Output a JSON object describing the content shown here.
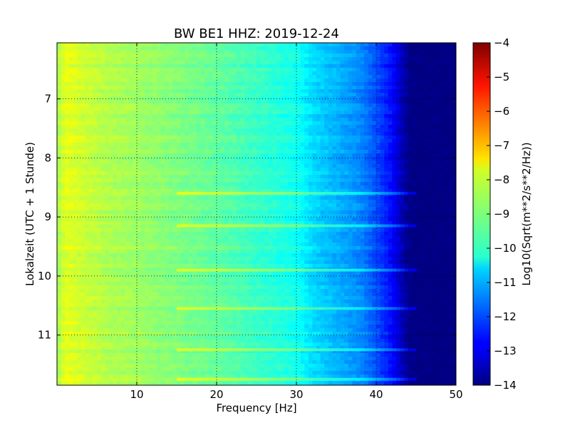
{
  "chart_data": {
    "type": "heatmap",
    "title": "BW BE1 HHZ: 2019-12-24",
    "xlabel": "Frequency [Hz]",
    "ylabel": "Lokalzeit (UTC + 1 Stunde)",
    "xlim": [
      0,
      50
    ],
    "ylim": [
      6.05,
      11.85
    ],
    "y_inverted": true,
    "x_ticks": [
      10,
      20,
      30,
      40,
      50
    ],
    "y_ticks": [
      7,
      8,
      9,
      10,
      11
    ],
    "grid": true,
    "colorbar": {
      "label": "Log10(Sqrt(m**2/s**2/Hz))",
      "range": [
        -14,
        -4
      ],
      "ticks": [
        -4,
        -5,
        -6,
        -7,
        -8,
        -9,
        -10,
        -11,
        -12,
        -13,
        -14
      ],
      "colormap": "jet"
    },
    "spectrum_profile": {
      "frequency_hz": [
        0,
        1,
        3,
        6,
        10,
        15,
        20,
        25,
        30,
        32,
        35,
        38,
        40,
        42,
        43,
        44,
        45,
        50
      ],
      "log10_amplitude": [
        -8.7,
        -8.0,
        -8.2,
        -8.5,
        -8.7,
        -9.0,
        -9.3,
        -9.7,
        -10.1,
        -10.6,
        -11.0,
        -11.4,
        -12.0,
        -12.7,
        -13.3,
        -13.9,
        -14.0,
        -14.0
      ]
    },
    "bright_bands_hours": [
      8.6,
      9.15,
      9.9,
      10.55,
      11.25,
      11.75
    ]
  }
}
